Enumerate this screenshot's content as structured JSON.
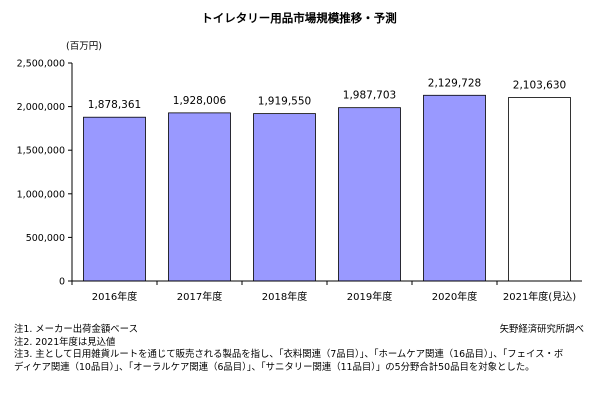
{
  "chart_data": {
    "type": "bar",
    "title": "トイレタリー用品市場規模推移・予測",
    "ylabel": "(百万円)",
    "categories": [
      "2016年度",
      "2017年度",
      "2018年度",
      "2019年度",
      "2020年度",
      "2021年度(見込)"
    ],
    "values": [
      1878361,
      1928006,
      1919550,
      1987703,
      2129728,
      2103630
    ],
    "value_labels": [
      "1,878,361",
      "1,928,006",
      "1,919,550",
      "1,987,703",
      "2,129,728",
      "2,103,630"
    ],
    "ylim": [
      0,
      2500000
    ],
    "yticks": [
      0,
      500000,
      1000000,
      1500000,
      2000000,
      2500000
    ],
    "ytick_labels": [
      "0",
      "500,000",
      "1,000,000",
      "1,500,000",
      "2,000,000",
      "2,500,000"
    ],
    "grid": false,
    "legend": false,
    "colors": {
      "bar_fill": "#9999ff",
      "bar_stroke": "#000000",
      "forecast_fill": "#ffffff",
      "axis": "#000000"
    },
    "forecast_index": 5
  },
  "notes": [
    "注1.  メーカー出荷金額ベース",
    "注2.  2021年度は見込値",
    "注3.  主として日用雑貨ルートを通じて販売される製品を指し、「衣料関連（7品目）」、「ホームケア関連（16品目）」、「フェイス・ボ",
    "ディケア関連（10品目）」、「オーラルケア関連（6品目）」、「サニタリー関連（11品目）」の5分野合計50品目を対象とした。"
  ],
  "source": "矢野経済研究所調べ"
}
